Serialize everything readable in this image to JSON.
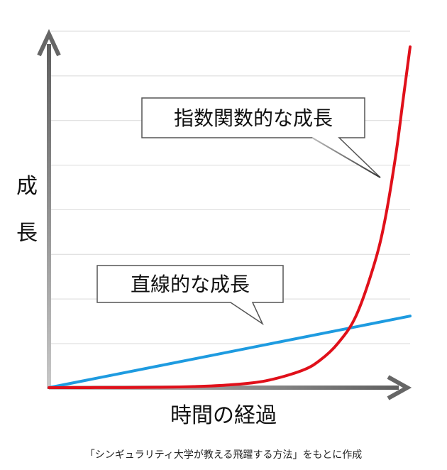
{
  "chart_data": {
    "type": "line",
    "title": "",
    "xlabel": "時間の経過",
    "ylabel": "成長",
    "ylabel_chars": [
      "成",
      "長"
    ],
    "grid": true,
    "grid_line_count": 8,
    "x_range": [
      0,
      10
    ],
    "y_range": [
      0,
      10
    ],
    "series": [
      {
        "name": "直線的な成長",
        "color": "#1E9BE0",
        "x": [
          0,
          10
        ],
        "y": [
          0,
          2.1
        ]
      },
      {
        "name": "指数関数的な成長",
        "color": "#E0101A",
        "x": [
          0,
          1,
          2,
          3,
          4,
          5,
          6,
          7,
          7.5,
          8,
          8.5,
          9,
          9.3,
          9.6,
          9.8,
          10
        ],
        "y": [
          0,
          0.001,
          0.003,
          0.01,
          0.03,
          0.08,
          0.2,
          0.5,
          0.8,
          1.3,
          2.1,
          3.6,
          4.9,
          6.8,
          8.4,
          10
        ]
      }
    ],
    "annotations": [
      {
        "text": "指数関数的な成長",
        "points_to_series": "指数関数的な成長"
      },
      {
        "text": "直線的な成長",
        "points_to_series": "直線的な成長"
      }
    ]
  },
  "source_note": "「シンギュラリティ大学が教える飛躍する方法」をもとに作成",
  "colors": {
    "axis": "#6f6f6f",
    "grid": "#d9d9d9",
    "callout_border": "#555555"
  }
}
